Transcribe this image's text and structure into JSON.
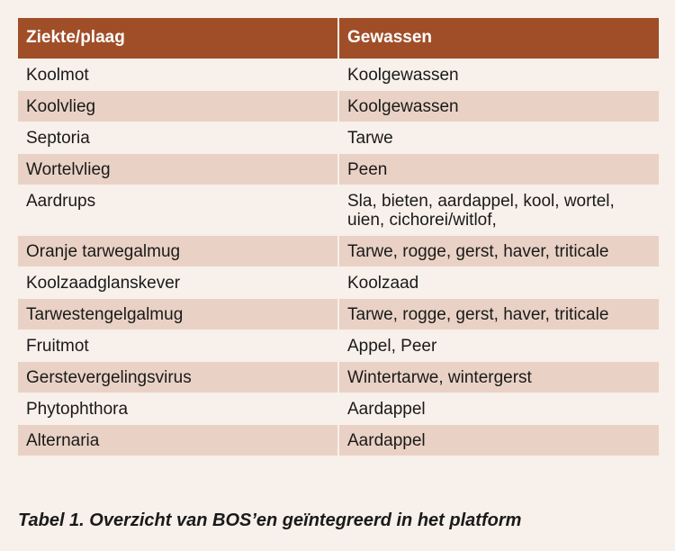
{
  "table": {
    "headers": [
      "Ziekte/plaag",
      "Gewassen"
    ],
    "rows": [
      [
        "Koolmot",
        "Koolgewassen"
      ],
      [
        "Koolvlieg",
        "Koolgewassen"
      ],
      [
        "Septoria",
        "Tarwe"
      ],
      [
        "Wortelvlieg",
        "Peen"
      ],
      [
        "Aardrups",
        "Sla, bieten, aardappel, kool, wortel, uien, cichorei/witlof,"
      ],
      [
        "Oranje tarwegalmug",
        "Tarwe, rogge, gerst, haver, triticale"
      ],
      [
        "Koolzaadglanskever",
        "Koolzaad"
      ],
      [
        "Tarwestengelgalmug",
        "Tarwe, rogge, gerst, haver, triticale"
      ],
      [
        "Fruitmot",
        "Appel, Peer"
      ],
      [
        "Gerstevergelingsvirus",
        "Wintertarwe, wintergerst"
      ],
      [
        "Phytophthora",
        "Aardappel"
      ],
      [
        "Alternaria",
        "Aardappel"
      ]
    ]
  },
  "caption": "Tabel 1. Overzicht van BOS’en geïntegreerd in het platform",
  "colors": {
    "header_bg": "#a04e28",
    "row_light": "#f8f0ea",
    "row_dark": "#e9d2c5",
    "text": "#1a1a1a"
  }
}
